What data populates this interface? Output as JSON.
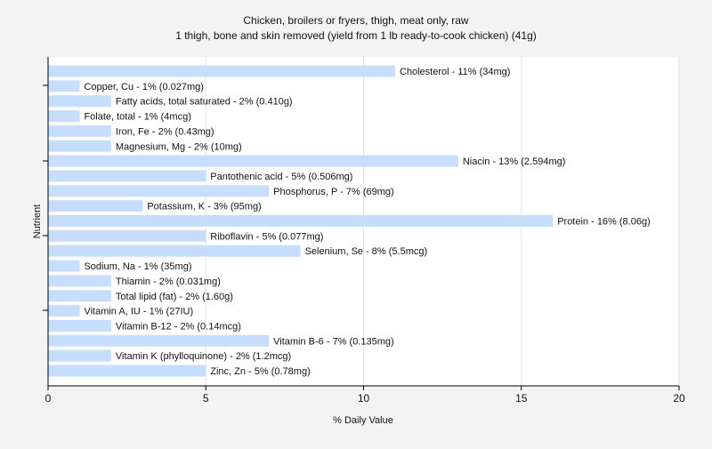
{
  "chart_data": {
    "type": "bar",
    "orientation": "horizontal",
    "title": "Chicken, broilers or fryers, thigh, meat only, raw",
    "subtitle": "1 thigh, bone and skin removed (yield from 1 lb ready-to-cook chicken) (41g)",
    "xlabel": "% Daily Value",
    "ylabel": "Nutrient",
    "xlim": [
      0,
      20
    ],
    "xticks": [
      0,
      5,
      10,
      15,
      20
    ],
    "grid": true,
    "bar_color": "#c6ddfb",
    "categories": [
      "Cholesterol",
      "Copper, Cu",
      "Fatty acids, total saturated",
      "Folate, total",
      "Iron, Fe",
      "Magnesium, Mg",
      "Niacin",
      "Pantothenic acid",
      "Phosphorus, P",
      "Potassium, K",
      "Protein",
      "Riboflavin",
      "Selenium, Se",
      "Sodium, Na",
      "Thiamin",
      "Total lipid (fat)",
      "Vitamin A, IU",
      "Vitamin B-12",
      "Vitamin B-6",
      "Vitamin K (phylloquinone)",
      "Zinc, Zn"
    ],
    "values": [
      11,
      1,
      2,
      1,
      2,
      2,
      13,
      5,
      7,
      3,
      16,
      5,
      8,
      1,
      2,
      2,
      1,
      2,
      7,
      2,
      5
    ],
    "labels": [
      "Cholesterol - 11% (34mg)",
      "Copper, Cu - 1% (0.027mg)",
      "Fatty acids, total saturated - 2% (0.410g)",
      "Folate, total - 1% (4mcg)",
      "Iron, Fe - 2% (0.43mg)",
      "Magnesium, Mg - 2% (10mg)",
      "Niacin - 13% (2.594mg)",
      "Pantothenic acid - 5% (0.506mg)",
      "Phosphorus, P - 7% (69mg)",
      "Potassium, K - 3% (95mg)",
      "Protein - 16% (8.06g)",
      "Riboflavin - 5% (0.077mg)",
      "Selenium, Se - 8% (5.5mcg)",
      "Sodium, Na - 1% (35mg)",
      "Thiamin - 2% (0.031mg)",
      "Total lipid (fat) - 2% (1.60g)",
      "Vitamin A, IU - 1% (27IU)",
      "Vitamin B-12 - 2% (0.14mcg)",
      "Vitamin B-6 - 7% (0.135mg)",
      "Vitamin K (phylloquinone) - 2% (1.2mcg)",
      "Zinc, Zn - 5% (0.78mg)"
    ]
  }
}
